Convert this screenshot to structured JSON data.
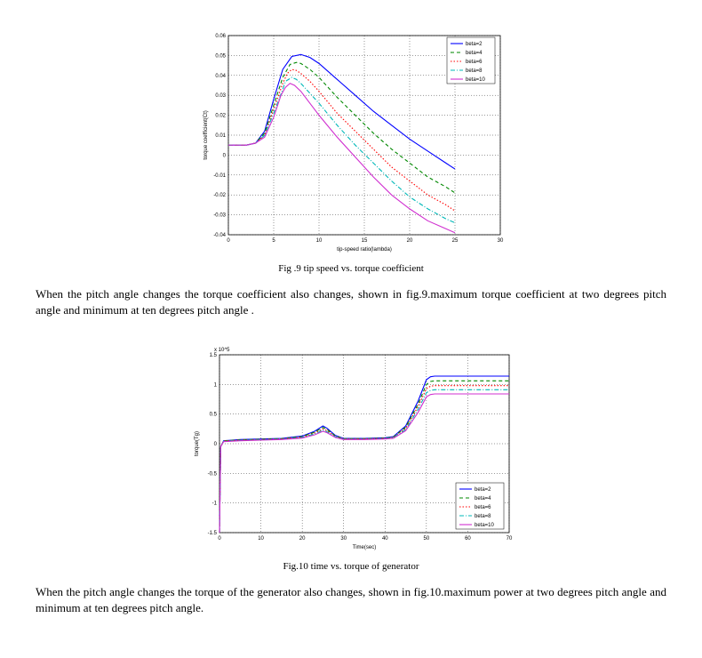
{
  "chart1": {
    "type": "line",
    "background_color": "#ffffff",
    "plot_background": "#ffffff",
    "grid_color": "#000000",
    "grid_dash": "1 2",
    "axis_color": "#000000",
    "xlabel": "tip-speed ratio(lambda)",
    "ylabel": "torque coefficient(Ct)",
    "xlim": [
      0,
      30
    ],
    "ylim": [
      -0.04,
      0.06
    ],
    "xticks": [
      0,
      5,
      10,
      15,
      20,
      25,
      30
    ],
    "yticks": [
      -0.04,
      -0.03,
      -0.02,
      -0.01,
      0,
      0.01,
      0.02,
      0.03,
      0.04,
      0.05,
      0.06
    ],
    "legend": {
      "position": "top-right",
      "items": [
        {
          "label": "beta=2",
          "color": "#0000ff",
          "dash": "none"
        },
        {
          "label": "beta=4",
          "color": "#008800",
          "dash": "4 3"
        },
        {
          "label": "beta=6",
          "color": "#ff0000",
          "dash": "1.5 2"
        },
        {
          "label": "beta=8",
          "color": "#00b8b8",
          "dash": "5 2 1 2"
        },
        {
          "label": "beta=10",
          "color": "#d030d0",
          "dash": "none"
        }
      ]
    },
    "series": [
      {
        "color": "#0000ff",
        "dash": "none",
        "points": [
          [
            0,
            0.005
          ],
          [
            2,
            0.005
          ],
          [
            3,
            0.006
          ],
          [
            4,
            0.012
          ],
          [
            5,
            0.028
          ],
          [
            6,
            0.043
          ],
          [
            7,
            0.0495
          ],
          [
            8,
            0.0505
          ],
          [
            9,
            0.049
          ],
          [
            10,
            0.046
          ],
          [
            12,
            0.038
          ],
          [
            14,
            0.03
          ],
          [
            16,
            0.022
          ],
          [
            18,
            0.015
          ],
          [
            20,
            0.008
          ],
          [
            22,
            0.002
          ],
          [
            24,
            -0.004
          ],
          [
            25,
            -0.007
          ]
        ]
      },
      {
        "color": "#008800",
        "dash": "4 3",
        "points": [
          [
            0,
            0.005
          ],
          [
            2,
            0.005
          ],
          [
            3,
            0.006
          ],
          [
            4,
            0.011
          ],
          [
            5,
            0.025
          ],
          [
            6,
            0.039
          ],
          [
            6.8,
            0.0455
          ],
          [
            7.5,
            0.0465
          ],
          [
            8,
            0.046
          ],
          [
            9,
            0.043
          ],
          [
            10,
            0.039
          ],
          [
            12,
            0.029
          ],
          [
            14,
            0.02
          ],
          [
            16,
            0.011
          ],
          [
            18,
            0.003
          ],
          [
            20,
            -0.004
          ],
          [
            22,
            -0.011
          ],
          [
            24,
            -0.016
          ],
          [
            25,
            -0.019
          ]
        ]
      },
      {
        "color": "#ff0000",
        "dash": "1.5 2",
        "points": [
          [
            0,
            0.005
          ],
          [
            2,
            0.005
          ],
          [
            3,
            0.006
          ],
          [
            4,
            0.01
          ],
          [
            5,
            0.023
          ],
          [
            6,
            0.036
          ],
          [
            6.5,
            0.041
          ],
          [
            7,
            0.043
          ],
          [
            7.5,
            0.0425
          ],
          [
            8,
            0.041
          ],
          [
            9,
            0.037
          ],
          [
            10,
            0.032
          ],
          [
            12,
            0.021
          ],
          [
            14,
            0.012
          ],
          [
            16,
            0.003
          ],
          [
            18,
            -0.006
          ],
          [
            20,
            -0.013
          ],
          [
            22,
            -0.02
          ],
          [
            24,
            -0.025
          ],
          [
            25,
            -0.028
          ]
        ]
      },
      {
        "color": "#00b8b8",
        "dash": "5 2 1 2",
        "points": [
          [
            0,
            0.005
          ],
          [
            2,
            0.005
          ],
          [
            3,
            0.006
          ],
          [
            4,
            0.01
          ],
          [
            5,
            0.021
          ],
          [
            6,
            0.033
          ],
          [
            6.3,
            0.037
          ],
          [
            7,
            0.039
          ],
          [
            7.5,
            0.038
          ],
          [
            8,
            0.036
          ],
          [
            9,
            0.031
          ],
          [
            10,
            0.026
          ],
          [
            12,
            0.015
          ],
          [
            14,
            0.005
          ],
          [
            16,
            -0.004
          ],
          [
            18,
            -0.013
          ],
          [
            20,
            -0.021
          ],
          [
            22,
            -0.027
          ],
          [
            24,
            -0.032
          ],
          [
            25,
            -0.034
          ]
        ]
      },
      {
        "color": "#d030d0",
        "dash": "none",
        "points": [
          [
            0,
            0.005
          ],
          [
            2,
            0.005
          ],
          [
            3,
            0.006
          ],
          [
            4,
            0.009
          ],
          [
            5,
            0.019
          ],
          [
            5.8,
            0.03
          ],
          [
            6.3,
            0.034
          ],
          [
            6.8,
            0.036
          ],
          [
            7.3,
            0.035
          ],
          [
            8,
            0.032
          ],
          [
            9,
            0.026
          ],
          [
            10,
            0.02
          ],
          [
            12,
            0.009
          ],
          [
            14,
            -0.001
          ],
          [
            16,
            -0.011
          ],
          [
            18,
            -0.02
          ],
          [
            20,
            -0.027
          ],
          [
            22,
            -0.033
          ],
          [
            24,
            -0.037
          ],
          [
            25,
            -0.039
          ]
        ]
      }
    ],
    "caption": "Fig .9 tip speed vs. torque coefficient"
  },
  "para1": "When the pitch angle changes the torque coefficient also changes, shown in fig.9.maximum torque coefficient at two degrees pitch angle and minimum at ten degrees pitch angle .",
  "chart2": {
    "type": "line",
    "background_color": "#ffffff",
    "plot_background": "#ffffff",
    "grid_color": "#000000",
    "grid_dash": "1 2",
    "axis_color": "#000000",
    "xlabel": "Time(sec)",
    "ylabel": "torque(Tg)",
    "exponent": "x 10^5",
    "xlim": [
      0,
      70
    ],
    "ylim": [
      -1.5,
      1.5
    ],
    "xticks": [
      0,
      10,
      20,
      30,
      40,
      50,
      60,
      70
    ],
    "yticks": [
      -1.5,
      -1,
      -0.5,
      0,
      0.5,
      1,
      1.5
    ],
    "legend": {
      "position": "right-middle",
      "items": [
        {
          "label": "beta=2",
          "color": "#0000ff",
          "dash": "none"
        },
        {
          "label": "beta=4",
          "color": "#008800",
          "dash": "4 3"
        },
        {
          "label": "beta=6",
          "color": "#ff0000",
          "dash": "1.5 2"
        },
        {
          "label": "beta=8",
          "color": "#00b8b8",
          "dash": "5 2 1 2"
        },
        {
          "label": "beta=10",
          "color": "#d030d0",
          "dash": "none"
        }
      ]
    },
    "series": [
      {
        "color": "#0000ff",
        "dash": "none",
        "points": [
          [
            0,
            -1.5
          ],
          [
            0.3,
            -0.05
          ],
          [
            1,
            0.05
          ],
          [
            5,
            0.07
          ],
          [
            10,
            0.08
          ],
          [
            15,
            0.09
          ],
          [
            20,
            0.13
          ],
          [
            23,
            0.21
          ],
          [
            25,
            0.3
          ],
          [
            26,
            0.26
          ],
          [
            28,
            0.14
          ],
          [
            30,
            0.09
          ],
          [
            35,
            0.09
          ],
          [
            40,
            0.1
          ],
          [
            42,
            0.12
          ],
          [
            45,
            0.3
          ],
          [
            48,
            0.72
          ],
          [
            50,
            1.08
          ],
          [
            51,
            1.13
          ],
          [
            52,
            1.14
          ],
          [
            70,
            1.14
          ]
        ]
      },
      {
        "color": "#008800",
        "dash": "4 3",
        "points": [
          [
            0,
            -1.5
          ],
          [
            0.3,
            -0.05
          ],
          [
            1,
            0.05
          ],
          [
            5,
            0.065
          ],
          [
            10,
            0.075
          ],
          [
            15,
            0.085
          ],
          [
            20,
            0.12
          ],
          [
            23,
            0.195
          ],
          [
            25,
            0.275
          ],
          [
            26,
            0.24
          ],
          [
            28,
            0.13
          ],
          [
            30,
            0.085
          ],
          [
            35,
            0.085
          ],
          [
            40,
            0.095
          ],
          [
            42,
            0.11
          ],
          [
            45,
            0.28
          ],
          [
            48,
            0.67
          ],
          [
            50,
            1.0
          ],
          [
            51,
            1.05
          ],
          [
            52,
            1.06
          ],
          [
            70,
            1.06
          ]
        ]
      },
      {
        "color": "#ff0000",
        "dash": "1.5 2",
        "points": [
          [
            0,
            -1.5
          ],
          [
            0.3,
            -0.05
          ],
          [
            1,
            0.045
          ],
          [
            5,
            0.06
          ],
          [
            10,
            0.07
          ],
          [
            15,
            0.08
          ],
          [
            20,
            0.11
          ],
          [
            23,
            0.18
          ],
          [
            25,
            0.25
          ],
          [
            26,
            0.22
          ],
          [
            28,
            0.12
          ],
          [
            30,
            0.08
          ],
          [
            35,
            0.08
          ],
          [
            40,
            0.09
          ],
          [
            42,
            0.105
          ],
          [
            45,
            0.26
          ],
          [
            48,
            0.63
          ],
          [
            50,
            0.93
          ],
          [
            51,
            0.97
          ],
          [
            52,
            0.98
          ],
          [
            70,
            0.98
          ]
        ]
      },
      {
        "color": "#00b8b8",
        "dash": "5 2 1 2",
        "points": [
          [
            0,
            -1.5
          ],
          [
            0.3,
            -0.05
          ],
          [
            1,
            0.04
          ],
          [
            5,
            0.055
          ],
          [
            10,
            0.065
          ],
          [
            15,
            0.075
          ],
          [
            20,
            0.105
          ],
          [
            23,
            0.165
          ],
          [
            25,
            0.23
          ],
          [
            26,
            0.2
          ],
          [
            28,
            0.115
          ],
          [
            30,
            0.075
          ],
          [
            35,
            0.075
          ],
          [
            40,
            0.085
          ],
          [
            42,
            0.1
          ],
          [
            45,
            0.24
          ],
          [
            48,
            0.58
          ],
          [
            50,
            0.86
          ],
          [
            51,
            0.9
          ],
          [
            52,
            0.91
          ],
          [
            70,
            0.91
          ]
        ]
      },
      {
        "color": "#d030d0",
        "dash": "none",
        "points": [
          [
            0,
            -1.5
          ],
          [
            0.3,
            -0.05
          ],
          [
            1,
            0.035
          ],
          [
            5,
            0.05
          ],
          [
            10,
            0.06
          ],
          [
            15,
            0.07
          ],
          [
            20,
            0.095
          ],
          [
            23,
            0.15
          ],
          [
            25,
            0.21
          ],
          [
            26,
            0.185
          ],
          [
            28,
            0.105
          ],
          [
            30,
            0.07
          ],
          [
            35,
            0.07
          ],
          [
            40,
            0.08
          ],
          [
            42,
            0.09
          ],
          [
            45,
            0.22
          ],
          [
            48,
            0.53
          ],
          [
            50,
            0.79
          ],
          [
            51,
            0.83
          ],
          [
            52,
            0.84
          ],
          [
            70,
            0.84
          ]
        ]
      }
    ],
    "caption": "Fig.10 time vs. torque of generator"
  },
  "para2": "When the pitch angle changes the torque of the generator also changes, shown in fig.10.maximum power at two degrees pitch angle and minimum at ten degrees pitch angle."
}
